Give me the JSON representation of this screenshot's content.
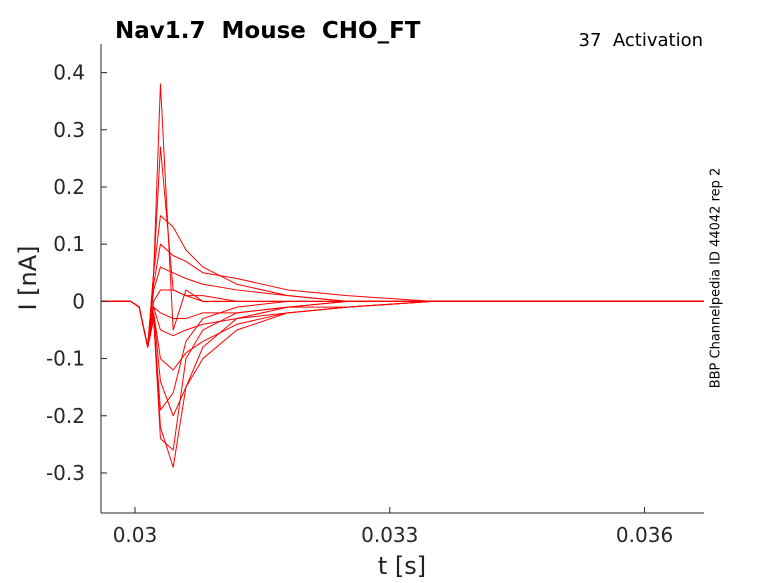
{
  "chart_data": {
    "type": "line",
    "title": "Nav1.7  Mouse  CHO_FT",
    "subtitle": "37  Activation",
    "side_label": "BBP Channelpedia ID 44042 rep 2",
    "xlabel": "t [s]",
    "ylabel": "I [nA]",
    "xlim": [
      0.0296,
      0.0367
    ],
    "ylim": [
      -0.37,
      0.45
    ],
    "x_ticks": [
      0.03,
      0.033,
      0.036
    ],
    "x_tick_labels": [
      "0.03",
      "0.033",
      "0.036"
    ],
    "y_ticks": [
      0.4,
      0.3,
      0.2,
      0.1,
      0,
      -0.1,
      -0.2,
      -0.3
    ],
    "y_tick_labels": [
      "0.4",
      "0.3",
      "0.2",
      "0.1",
      "0",
      "-0.1",
      "-0.2",
      "-0.3"
    ],
    "grid": false,
    "line_color": "#ff0000",
    "series": [
      {
        "x": [
          0.0296,
          0.02995,
          0.03005,
          0.03015,
          0.03022,
          0.0303,
          0.03045,
          0.0306,
          0.0308,
          0.0312,
          0.0318,
          0.0325,
          0.0335,
          0.0345,
          0.0355,
          0.0367
        ],
        "values": [
          0.0,
          0.0,
          -0.01,
          -0.08,
          0.05,
          0.38,
          -0.05,
          0.02,
          0.0,
          0.0,
          0.0,
          0.0,
          0.0,
          0.0,
          0.0,
          0.0
        ]
      },
      {
        "x": [
          0.0296,
          0.02995,
          0.03005,
          0.03015,
          0.03022,
          0.0303,
          0.03045,
          0.0306,
          0.0308,
          0.0312,
          0.0318,
          0.0325,
          0.0335,
          0.0345,
          0.0355,
          0.0367
        ],
        "values": [
          0.0,
          0.0,
          -0.01,
          -0.08,
          0.05,
          0.27,
          0.02,
          0.01,
          0.0,
          0.0,
          0.0,
          0.0,
          0.0,
          0.0,
          0.0,
          0.0
        ]
      },
      {
        "x": [
          0.0296,
          0.02995,
          0.03005,
          0.03015,
          0.03022,
          0.0303,
          0.03045,
          0.0306,
          0.0308,
          0.0312,
          0.0318,
          0.0325,
          0.0335,
          0.0345,
          0.0355,
          0.0367
        ],
        "values": [
          0.0,
          0.0,
          -0.01,
          -0.08,
          0.05,
          0.15,
          0.13,
          0.09,
          0.06,
          0.03,
          0.01,
          0.0,
          0.0,
          0.0,
          0.0,
          0.0
        ]
      },
      {
        "x": [
          0.0296,
          0.02995,
          0.03005,
          0.03015,
          0.03022,
          0.0303,
          0.03045,
          0.0306,
          0.0308,
          0.0312,
          0.0318,
          0.0325,
          0.0335,
          0.0345,
          0.0355,
          0.0367
        ],
        "values": [
          0.0,
          0.0,
          -0.01,
          -0.08,
          0.03,
          0.1,
          0.08,
          0.07,
          0.05,
          0.04,
          0.02,
          0.01,
          0.0,
          0.0,
          0.0,
          0.0
        ]
      },
      {
        "x": [
          0.0296,
          0.02995,
          0.03005,
          0.03015,
          0.03022,
          0.0303,
          0.03045,
          0.0306,
          0.0308,
          0.0312,
          0.0318,
          0.0325,
          0.0335,
          0.0345,
          0.0355,
          0.0367
        ],
        "values": [
          0.0,
          0.0,
          -0.01,
          -0.08,
          0.02,
          0.06,
          0.05,
          0.04,
          0.03,
          0.02,
          0.01,
          0.0,
          0.0,
          0.0,
          0.0,
          0.0
        ]
      },
      {
        "x": [
          0.0296,
          0.02995,
          0.03005,
          0.03015,
          0.03022,
          0.0303,
          0.03045,
          0.0306,
          0.0308,
          0.0312,
          0.0318,
          0.0325,
          0.0335,
          0.0345,
          0.0355,
          0.0367
        ],
        "values": [
          0.0,
          0.0,
          -0.01,
          -0.08,
          0.0,
          0.02,
          0.02,
          0.01,
          0.01,
          0.0,
          0.0,
          0.0,
          0.0,
          0.0,
          0.0,
          0.0
        ]
      },
      {
        "x": [
          0.0296,
          0.02995,
          0.03005,
          0.03015,
          0.03022,
          0.0303,
          0.03045,
          0.0306,
          0.0308,
          0.0312,
          0.0318,
          0.0325,
          0.0335,
          0.0345,
          0.0355,
          0.0367
        ],
        "values": [
          0.0,
          0.0,
          -0.01,
          -0.08,
          -0.01,
          -0.02,
          -0.03,
          -0.03,
          -0.02,
          -0.02,
          -0.01,
          -0.01,
          0.0,
          0.0,
          0.0,
          0.0
        ]
      },
      {
        "x": [
          0.0296,
          0.02995,
          0.03005,
          0.03015,
          0.03022,
          0.0303,
          0.03045,
          0.0306,
          0.0308,
          0.0312,
          0.0318,
          0.0325,
          0.0335,
          0.0345,
          0.0355,
          0.0367
        ],
        "values": [
          0.0,
          0.0,
          -0.01,
          -0.08,
          -0.01,
          -0.05,
          -0.06,
          -0.05,
          -0.04,
          -0.03,
          -0.02,
          -0.01,
          0.0,
          0.0,
          0.0,
          0.0
        ]
      },
      {
        "x": [
          0.0296,
          0.02995,
          0.03005,
          0.03015,
          0.03022,
          0.0303,
          0.03045,
          0.0306,
          0.0308,
          0.0312,
          0.0318,
          0.0325,
          0.0335,
          0.0345,
          0.0355,
          0.0367
        ],
        "values": [
          0.0,
          0.0,
          -0.01,
          -0.08,
          -0.02,
          -0.1,
          -0.12,
          -0.09,
          -0.07,
          -0.04,
          -0.02,
          -0.01,
          0.0,
          0.0,
          0.0,
          0.0
        ]
      },
      {
        "x": [
          0.0296,
          0.02995,
          0.03005,
          0.03015,
          0.03022,
          0.0303,
          0.03045,
          0.0306,
          0.0308,
          0.0312,
          0.0318,
          0.0325,
          0.0335,
          0.0345,
          0.0355,
          0.0367
        ],
        "values": [
          0.0,
          0.0,
          -0.01,
          -0.08,
          -0.02,
          -0.14,
          -0.2,
          -0.15,
          -0.1,
          -0.05,
          -0.02,
          -0.01,
          0.0,
          0.0,
          0.0,
          0.0
        ]
      },
      {
        "x": [
          0.0296,
          0.02995,
          0.03005,
          0.03015,
          0.03022,
          0.0303,
          0.03045,
          0.0306,
          0.0308,
          0.0312,
          0.0318,
          0.0325,
          0.0335,
          0.0345,
          0.0355,
          0.0367
        ],
        "values": [
          0.0,
          0.0,
          -0.01,
          -0.08,
          -0.03,
          -0.22,
          -0.29,
          -0.15,
          -0.08,
          -0.03,
          -0.01,
          0.0,
          0.0,
          0.0,
          0.0,
          0.0
        ]
      },
      {
        "x": [
          0.0296,
          0.02995,
          0.03005,
          0.03015,
          0.03022,
          0.0303,
          0.03045,
          0.0306,
          0.0308,
          0.0312,
          0.0318,
          0.0325,
          0.0335,
          0.0345,
          0.0355,
          0.0367
        ],
        "values": [
          0.0,
          0.0,
          -0.01,
          -0.08,
          -0.03,
          -0.24,
          -0.26,
          -0.1,
          -0.05,
          -0.02,
          -0.01,
          0.0,
          0.0,
          0.0,
          0.0,
          0.0
        ]
      },
      {
        "x": [
          0.0296,
          0.02995,
          0.03005,
          0.03015,
          0.03022,
          0.0303,
          0.03045,
          0.0306,
          0.0308,
          0.0312,
          0.0318,
          0.0325,
          0.0335,
          0.0345,
          0.0355,
          0.0367
        ],
        "values": [
          0.0,
          0.0,
          -0.01,
          -0.08,
          -0.03,
          -0.19,
          -0.16,
          -0.07,
          -0.03,
          -0.01,
          0.0,
          0.0,
          0.0,
          0.0,
          0.0,
          0.0
        ]
      }
    ]
  }
}
